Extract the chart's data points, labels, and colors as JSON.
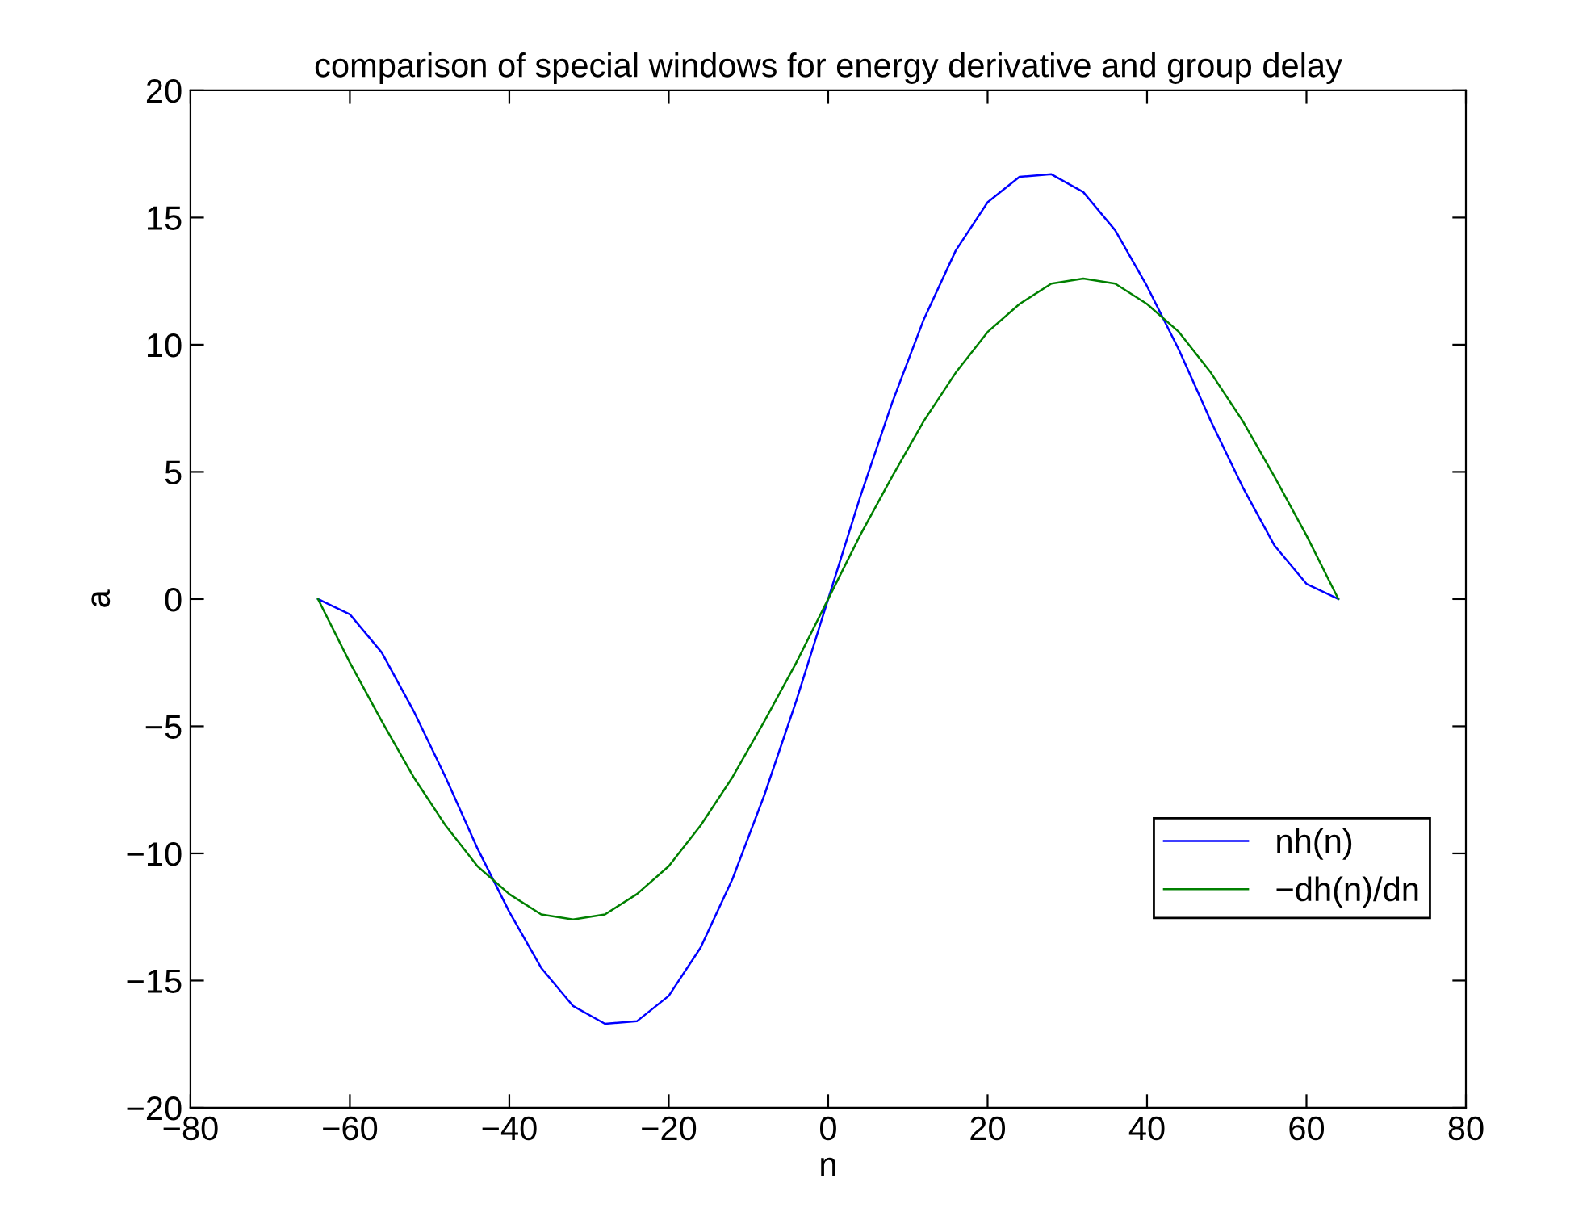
{
  "chart_data": {
    "type": "line",
    "title": "comparison of special windows for energy derivative and group delay",
    "xlabel": "n",
    "ylabel": "a",
    "x": [
      -64,
      -60,
      -56,
      -52,
      -48,
      -44,
      -40,
      -36,
      -32,
      -28,
      -24,
      -20,
      -16,
      -12,
      -8,
      -4,
      0,
      4,
      8,
      12,
      16,
      20,
      24,
      28,
      32,
      36,
      40,
      44,
      48,
      52,
      56,
      60,
      64
    ],
    "series": [
      {
        "name": "nh(n)",
        "color": "#0000ff",
        "values": [
          0,
          -0.6,
          -2.1,
          -4.4,
          -7.0,
          -9.8,
          -12.3,
          -14.5,
          -16.0,
          -16.7,
          -16.6,
          -15.6,
          -13.7,
          -11.0,
          -7.7,
          -4.0,
          0,
          4.0,
          7.7,
          11.0,
          13.7,
          15.6,
          16.6,
          16.7,
          16.0,
          14.5,
          12.3,
          9.8,
          7.0,
          4.4,
          2.1,
          0.6,
          0
        ]
      },
      {
        "name": "−dh(n)/dn",
        "color": "#008000",
        "values": [
          0,
          -2.5,
          -4.8,
          -7.0,
          -8.9,
          -10.5,
          -11.6,
          -12.4,
          -12.6,
          -12.4,
          -11.6,
          -10.5,
          -8.9,
          -7.0,
          -4.8,
          -2.5,
          0,
          2.5,
          4.8,
          7.0,
          8.9,
          10.5,
          11.6,
          12.4,
          12.6,
          12.4,
          11.6,
          10.5,
          8.9,
          7.0,
          4.8,
          2.5,
          0
        ]
      }
    ],
    "xlim": [
      -80,
      80
    ],
    "xticks": [
      -80,
      -60,
      -40,
      -20,
      0,
      20,
      40,
      60,
      80
    ],
    "ylim": [
      -20,
      20
    ],
    "yticks": [
      -20,
      -15,
      -10,
      -5,
      0,
      5,
      10,
      15,
      20
    ],
    "grid": false,
    "legend": "lower right",
    "marker": "none",
    "line_style": "solid"
  }
}
